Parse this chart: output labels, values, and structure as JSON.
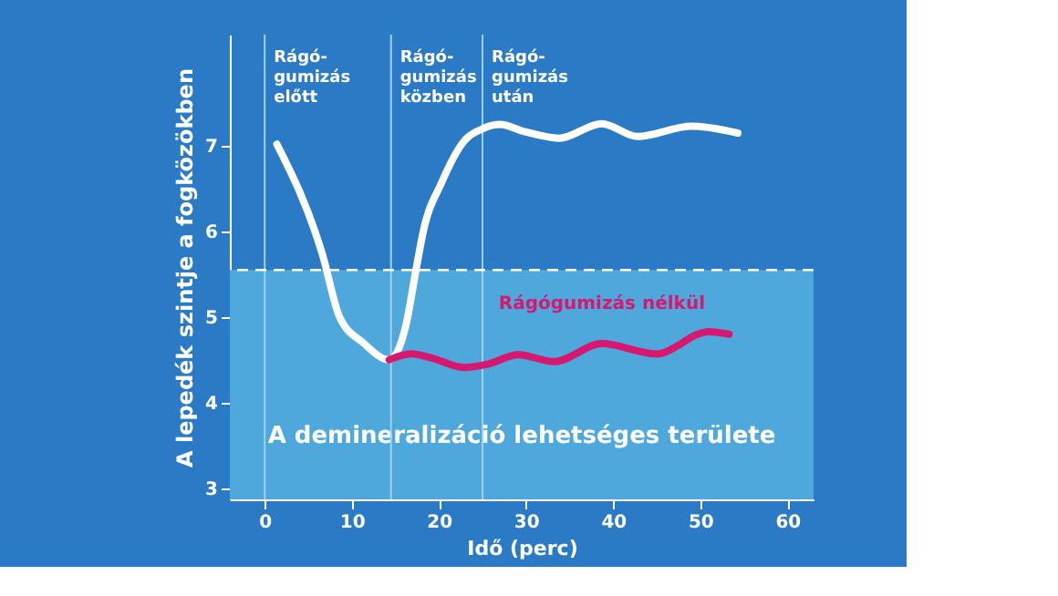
{
  "chart_data": {
    "type": "line",
    "ylabel": "A lepedék szintje a fogközökben",
    "xlabel": "Idő (perc)",
    "xlim": [
      -4,
      63
    ],
    "ylim": [
      2.87,
      8.3
    ],
    "xticks": [
      0,
      10,
      20,
      30,
      40,
      50,
      60
    ],
    "yticks": [
      3,
      4,
      5,
      6,
      7
    ],
    "grid": false,
    "line_style": "solid",
    "marker": "none",
    "series": [
      {
        "color": "#ffffff",
        "x": [
          1.4,
          6.6,
          8.6,
          11.3,
          14.3,
          16.2,
          17.4,
          18.2,
          20.3,
          23,
          25,
          27,
          29.7,
          33.8,
          38.7,
          42.8,
          49,
          54.3
        ],
        "values": [
          7.02,
          5.74,
          5.0,
          4.7,
          4.5,
          4.9,
          5.57,
          6.0,
          6.57,
          7.07,
          7.2,
          7.25,
          7.17,
          7.09,
          7.26,
          7.11,
          7.23,
          7.15
        ]
      },
      {
        "name": "Rágógumizás nélkül",
        "color": "#d6186f",
        "x": [
          14.3,
          16.8,
          18.9,
          23,
          25.6,
          29.1,
          33.2,
          38.7,
          44.9,
          51,
          53.3
        ],
        "values": [
          4.5,
          4.57,
          4.53,
          4.41,
          4.45,
          4.56,
          4.48,
          4.69,
          4.57,
          4.83,
          4.8
        ]
      }
    ],
    "ref_lines": [
      {
        "axis": "x",
        "value": 0,
        "label": "Rágó-\ngumizás\nelőtt",
        "color": "#9fd0f0"
      },
      {
        "axis": "x",
        "value": 14.5,
        "label": "Rágó-\ngumizás\nközben",
        "color": "#9fd0f0"
      },
      {
        "axis": "x",
        "value": 25,
        "label": "Rágó-\ngumizás\nután",
        "color": "#9fd0f0"
      },
      {
        "axis": "y",
        "value": 5.55,
        "label": null,
        "color": "#ffffff",
        "line_style": "dashed"
      }
    ],
    "bands": [
      {
        "axis": "y",
        "from": 2.87,
        "to": 5.55,
        "label": "A demineralizáció lehetséges területe",
        "color": "#4fa8dc"
      }
    ]
  }
}
